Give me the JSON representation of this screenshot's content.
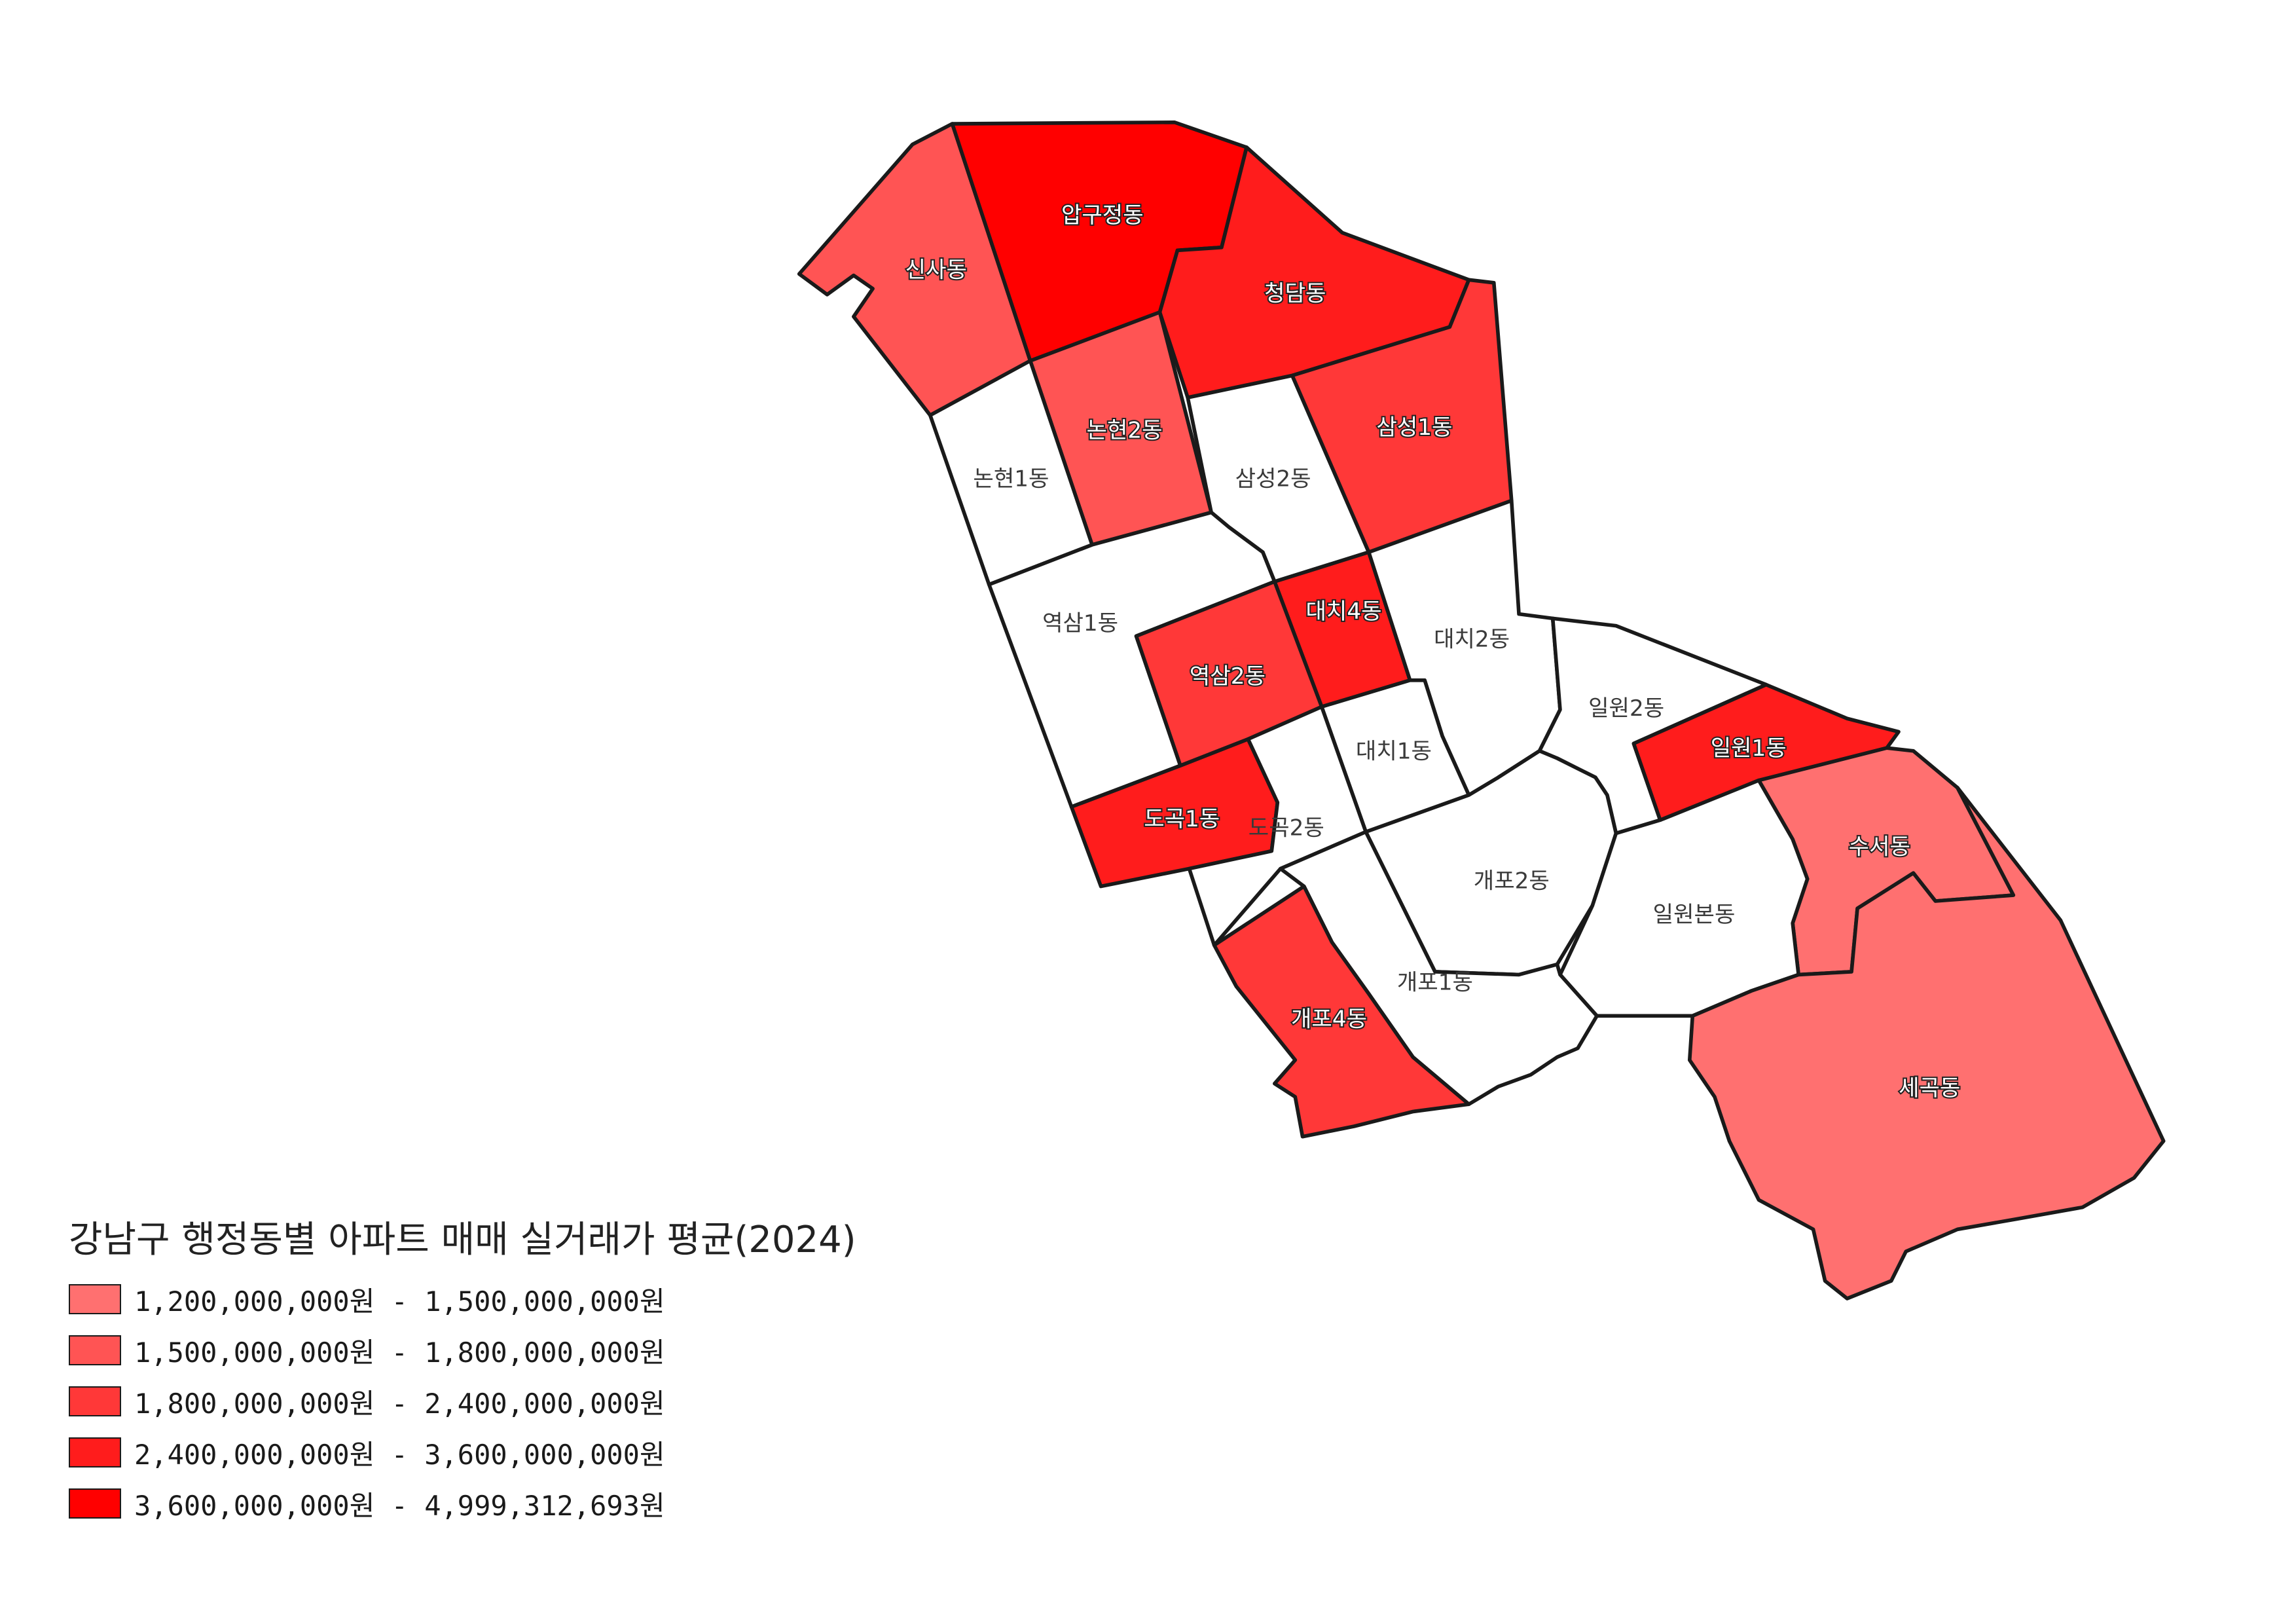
{
  "map": {
    "title": "강남구 행정동별 아파트 매매 실거래가 평균(2024)",
    "legend": [
      {
        "label": "1,200,000,000원 - 1,500,000,000원",
        "color": "#ff7070"
      },
      {
        "label": "1,500,000,000원 - 1,800,000,000원",
        "color": "#ff5454"
      },
      {
        "label": "1,800,000,000원 - 2,400,000,000원",
        "color": "#ff3838"
      },
      {
        "label": "2,400,000,000원 - 3,600,000,000원",
        "color": "#ff1c1c"
      },
      {
        "label": "3,600,000,000원 - 4,999,312,693원",
        "color": "#ff0000"
      }
    ],
    "districts": [
      {
        "key": "sinsa",
        "name": "신사동",
        "class": 1,
        "color": "#ff5454"
      },
      {
        "key": "apgujeong",
        "name": "압구정동",
        "class": 4,
        "color": "#ff0000"
      },
      {
        "key": "cheongdam",
        "name": "청담동",
        "class": 3,
        "color": "#ff1c1c"
      },
      {
        "key": "nonhyeon2",
        "name": "논현2동",
        "class": 1,
        "color": "#ff5454"
      },
      {
        "key": "nonhyeon1",
        "name": "논현1동",
        "class": null,
        "color": "#ffffff"
      },
      {
        "key": "samseong2",
        "name": "삼성2동",
        "class": null,
        "color": "#ffffff"
      },
      {
        "key": "samseong1",
        "name": "삼성1동",
        "class": 2,
        "color": "#ff3838"
      },
      {
        "key": "yeoksam1",
        "name": "역삼1동",
        "class": null,
        "color": "#ffffff"
      },
      {
        "key": "daechi4",
        "name": "대치4동",
        "class": 3,
        "color": "#ff1c1c"
      },
      {
        "key": "yeoksam2",
        "name": "역삼2동",
        "class": 2,
        "color": "#ff3838"
      },
      {
        "key": "daechi2",
        "name": "대치2동",
        "class": null,
        "color": "#ffffff"
      },
      {
        "key": "irwon2",
        "name": "일원2동",
        "class": null,
        "color": "#ffffff"
      },
      {
        "key": "daechi1",
        "name": "대치1동",
        "class": null,
        "color": "#ffffff"
      },
      {
        "key": "irwon1",
        "name": "일원1동",
        "class": 3,
        "color": "#ff1c1c"
      },
      {
        "key": "dogok1",
        "name": "도곡1동",
        "class": 3,
        "color": "#ff1c1c"
      },
      {
        "key": "dogok2",
        "name": "도곡2동",
        "class": null,
        "color": "#ffffff"
      },
      {
        "key": "suseo",
        "name": "수서동",
        "class": 0,
        "color": "#ff7070"
      },
      {
        "key": "gaepo2",
        "name": "개포2동",
        "class": null,
        "color": "#ffffff"
      },
      {
        "key": "irwonbon",
        "name": "일원본동",
        "class": null,
        "color": "#ffffff"
      },
      {
        "key": "gaepo1",
        "name": "개포1동",
        "class": null,
        "color": "#ffffff"
      },
      {
        "key": "gaepo4",
        "name": "개포4동",
        "class": 2,
        "color": "#ff3838"
      },
      {
        "key": "segok",
        "name": "세곡동",
        "class": 0,
        "color": "#ff7070"
      }
    ]
  }
}
